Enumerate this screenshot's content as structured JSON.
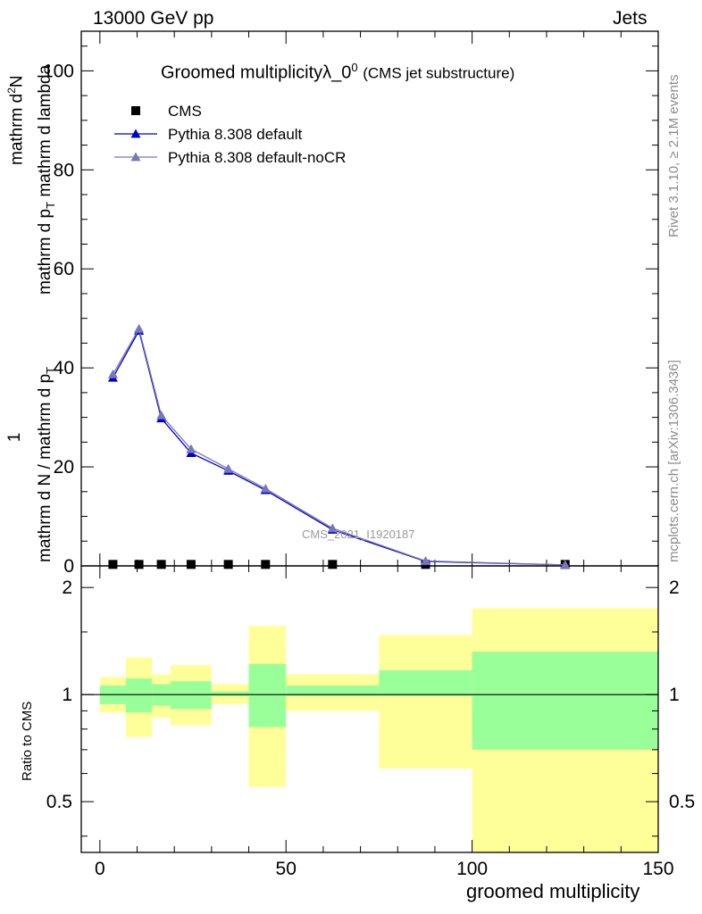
{
  "header": {
    "left": "13000 GeV pp",
    "right": "Jets"
  },
  "side_labels": {
    "rivet": "Rivet 3.1.10, ≥ 2.1M events",
    "mcplots": "mcplots.cern.ch [arXiv:1306.3436]"
  },
  "watermark": "CMS_2021_I1920187",
  "chart_data": {
    "type": "line",
    "title_main": "Groomed multiplicityλ_0",
    "title_sup": "0",
    "title_suffix": "(CMS jet substructure)",
    "xlabel": "groomed multiplicity",
    "ylabel": "1 / (mathrm d N / mathrm d p_T) · mathrm d^2N / (mathrm d p_T mathrm d lambda)",
    "ylabel_frac_num": "1",
    "ylabel_frac_den": "mathrm d N / mathrm d p",
    "ylabel_frac_den_sub": "T",
    "ylabel_main_num": "mathrm d",
    "ylabel_main_num_sup": "2",
    "ylabel_main_num_end": "N",
    "ylabel_main_den": "mathrm d p",
    "ylabel_main_den_sub": "T",
    "ylabel_main_den_end": "mathrm d lambda",
    "ratio_ylabel": "Ratio to CMS",
    "xlim": [
      -5,
      150
    ],
    "ylim": [
      0,
      108
    ],
    "ratio_ylim": [
      0.36,
      2.3
    ],
    "ratio_log": true,
    "xticks": [
      0,
      50,
      100,
      150
    ],
    "yticks": [
      0,
      20,
      40,
      60,
      80,
      100
    ],
    "ratio_yticks": [
      0.5,
      1,
      2
    ],
    "ratio_ytick_labels": [
      "0.5",
      "1",
      "2"
    ],
    "legend_position": "top-left",
    "series": [
      {
        "name": "CMS",
        "color": "#000000",
        "marker": "square",
        "x": [
          3.5,
          10.5,
          16.5,
          24.5,
          34.5,
          44.5,
          62.5,
          87.5,
          125
        ],
        "y": [
          0.3,
          0.3,
          0.3,
          0.3,
          0.3,
          0.3,
          0.3,
          0.3,
          0.3
        ]
      },
      {
        "name": "Pythia 8.308 default",
        "color": "#0000cc",
        "marker": "triangle",
        "x": [
          3.5,
          10.5,
          16.5,
          24.5,
          34.5,
          44.5,
          62.5,
          87.5,
          125
        ],
        "y": [
          38,
          47.5,
          29.8,
          22.8,
          19.2,
          15.3,
          7.3,
          0.9,
          0.2
        ]
      },
      {
        "name": "Pythia 8.308 default-noCR",
        "color": "#7777bb",
        "marker": "triangle",
        "x": [
          3.5,
          10.5,
          16.5,
          24.5,
          34.5,
          44.5,
          62.5,
          87.5,
          125
        ],
        "y": [
          38.7,
          47.9,
          30.4,
          23.6,
          19.6,
          15.6,
          7.6,
          1.0,
          0.2
        ]
      }
    ],
    "ratio_bands": {
      "bins": [
        [
          0,
          7
        ],
        [
          7,
          14
        ],
        [
          14,
          19
        ],
        [
          19,
          30
        ],
        [
          30,
          40
        ],
        [
          40,
          50
        ],
        [
          50,
          75
        ],
        [
          75,
          100
        ],
        [
          100,
          150
        ]
      ],
      "stat_lo": [
        0.94,
        0.89,
        0.93,
        0.91,
        0.99,
        0.81,
        0.99,
        0.99,
        0.7
      ],
      "stat_hi": [
        1.06,
        1.11,
        1.07,
        1.09,
        1.02,
        1.22,
        1.06,
        1.17,
        1.32
      ],
      "total_lo": [
        0.89,
        0.76,
        0.86,
        0.82,
        0.94,
        0.55,
        0.9,
        0.62,
        0.3
      ],
      "total_hi": [
        1.12,
        1.27,
        1.14,
        1.21,
        1.07,
        1.56,
        1.14,
        1.47,
        1.75
      ],
      "stat_color": "#99ff99",
      "total_color": "#ffff99"
    }
  }
}
